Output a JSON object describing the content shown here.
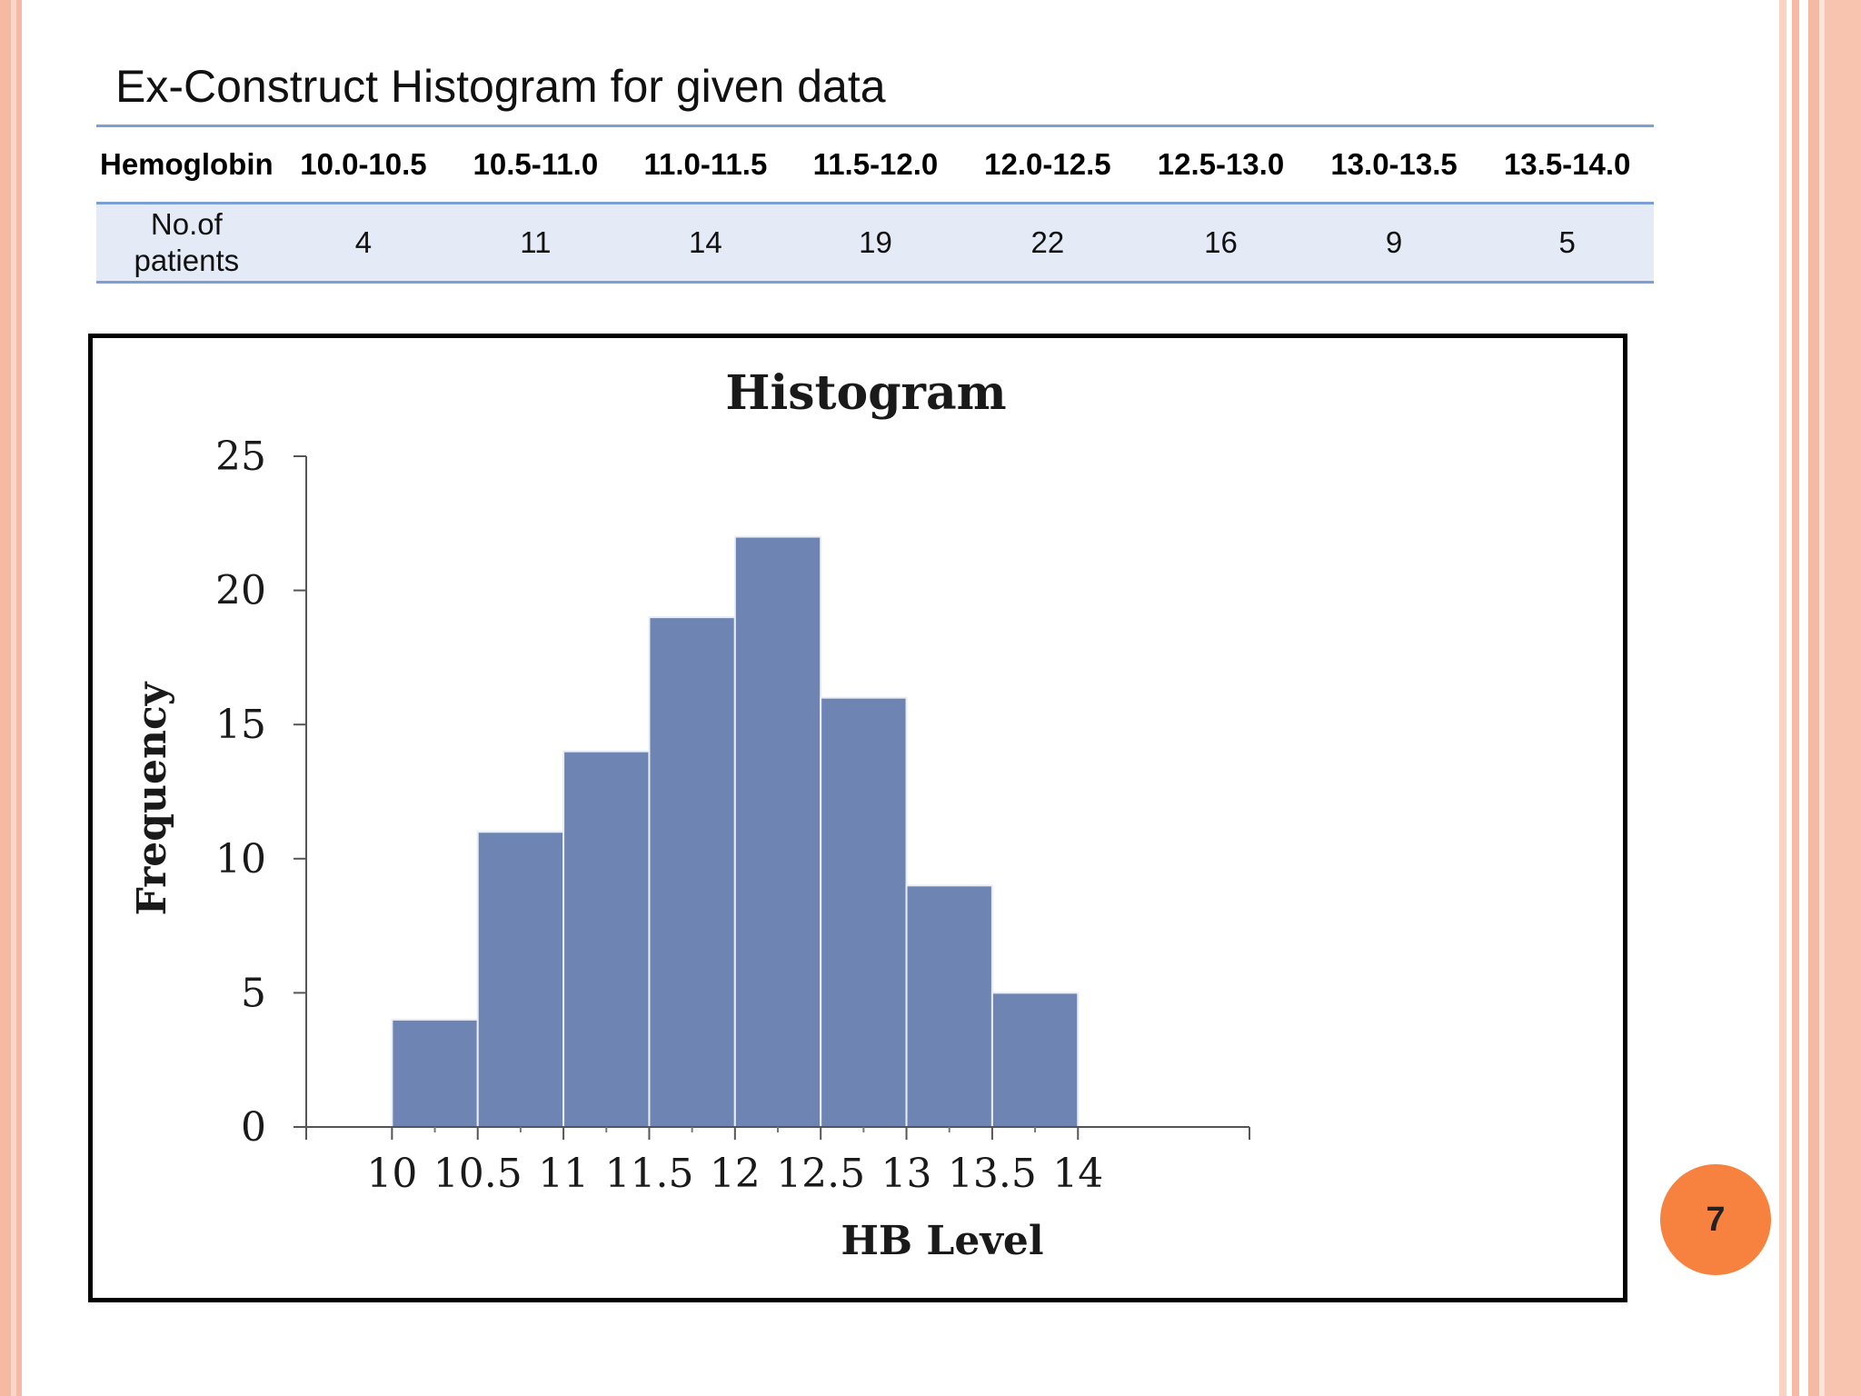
{
  "slide": {
    "title": "Ex-Construct Histogram for given data",
    "page_number": "7",
    "accent_color": "#f7813f"
  },
  "table": {
    "row1_header": "Hemoglobin",
    "row2_header": "No.of patients",
    "columns": [
      "10.0-10.5",
      "10.5-11.0",
      "11.0-11.5",
      "11.5-12.0",
      "12.0-12.5",
      "12.5-13.0",
      "13.0-13.5",
      "13.5-14.0"
    ],
    "values": [
      "4",
      "11",
      "14",
      "19",
      "22",
      "16",
      "9",
      "5"
    ]
  },
  "chart_data": {
    "type": "bar",
    "title": "Histogram",
    "xlabel": "HB Level",
    "ylabel": "Frequency",
    "bins": [
      {
        "from": 10.0,
        "to": 10.5,
        "value": 4
      },
      {
        "from": 10.5,
        "to": 11.0,
        "value": 11
      },
      {
        "from": 11.0,
        "to": 11.5,
        "value": 14
      },
      {
        "from": 11.5,
        "to": 12.0,
        "value": 19
      },
      {
        "from": 12.0,
        "to": 12.5,
        "value": 22
      },
      {
        "from": 12.5,
        "to": 13.0,
        "value": 16
      },
      {
        "from": 13.0,
        "to": 13.5,
        "value": 9
      },
      {
        "from": 13.5,
        "to": 14.0,
        "value": 5
      }
    ],
    "x_ticks": [
      "10",
      "10.5",
      "11",
      "11.5",
      "12",
      "12.5",
      "13",
      "13.5",
      "14"
    ],
    "y_ticks": [
      "0",
      "5",
      "10",
      "15",
      "20",
      "25"
    ],
    "xlim": [
      9.5,
      15.0
    ],
    "ylim": [
      0,
      25
    ],
    "grid": false,
    "bar_color": "#6e84b3"
  }
}
